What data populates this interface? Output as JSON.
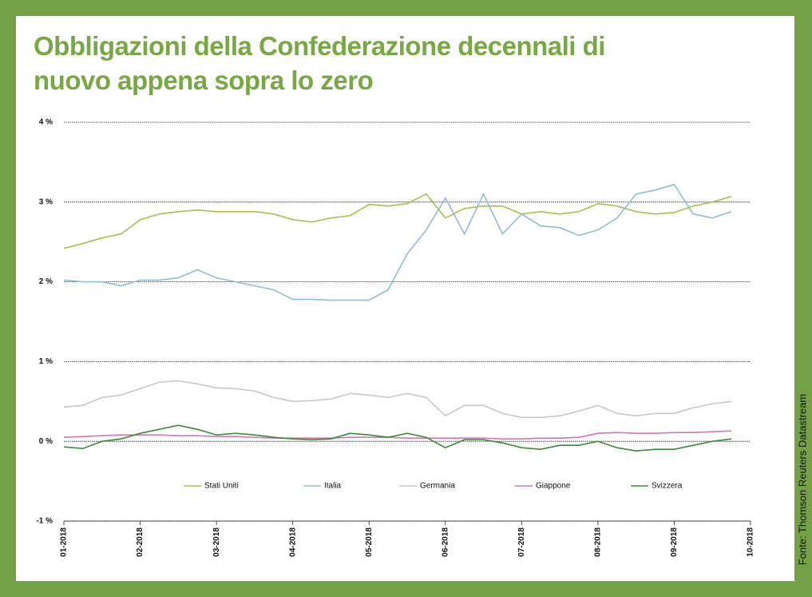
{
  "chart_data": {
    "type": "line",
    "title": "Obbligazioni della Confederazione decennali di nuovo appena sopra lo zero",
    "source": "Fonte: Thomson Reuters Datastream",
    "categories": [
      "01-2018",
      null,
      null,
      null,
      "02-2018",
      null,
      null,
      null,
      "03-2018",
      null,
      null,
      null,
      "04-2018",
      null,
      null,
      null,
      "05-2018",
      null,
      null,
      null,
      "06-2018",
      null,
      null,
      null,
      "07-2018",
      null,
      null,
      null,
      "08-2018",
      null,
      null,
      null,
      "09-2018",
      null,
      null,
      null,
      "10-2018"
    ],
    "ylim": [
      -1,
      4
    ],
    "yticks": [
      {
        "value": -1,
        "label": "-1 %"
      },
      {
        "value": 0,
        "label": "0 %"
      },
      {
        "value": 1,
        "label": "1 %"
      },
      {
        "value": 2,
        "label": "2 %"
      },
      {
        "value": 3,
        "label": "3 %"
      },
      {
        "value": 4,
        "label": "4 %"
      }
    ],
    "grid": true,
    "legend": "bottom",
    "series": [
      {
        "name": "Stati Uniti",
        "color": "#a8c050",
        "values": [
          2.42,
          2.48,
          2.55,
          2.6,
          2.78,
          2.85,
          2.88,
          2.9,
          2.88,
          2.88,
          2.88,
          2.85,
          2.78,
          2.75,
          2.8,
          2.83,
          2.97,
          2.95,
          2.98,
          3.1,
          2.8,
          2.92,
          2.95,
          2.95,
          2.85,
          2.88,
          2.85,
          2.88,
          2.98,
          2.95,
          2.88,
          2.85,
          2.87,
          2.95,
          3.0,
          3.07,
          null
        ]
      },
      {
        "name": "Italia",
        "color": "#8fbcd9",
        "values": [
          2.02,
          2.0,
          2.0,
          1.95,
          2.02,
          2.02,
          2.05,
          2.15,
          2.05,
          2.0,
          1.95,
          1.9,
          1.78,
          1.78,
          1.77,
          1.77,
          1.77,
          1.9,
          2.35,
          2.65,
          3.05,
          2.6,
          3.1,
          2.6,
          2.85,
          2.7,
          2.68,
          2.58,
          2.65,
          2.8,
          3.1,
          3.15,
          3.22,
          2.85,
          2.8,
          2.88,
          null
        ]
      },
      {
        "name": "Germania",
        "color": "#c8c8c8",
        "values": [
          0.43,
          0.45,
          0.55,
          0.58,
          0.66,
          0.74,
          0.76,
          0.72,
          0.67,
          0.66,
          0.63,
          0.55,
          0.5,
          0.51,
          0.53,
          0.6,
          0.58,
          0.55,
          0.6,
          0.55,
          0.32,
          0.45,
          0.45,
          0.35,
          0.3,
          0.3,
          0.32,
          0.38,
          0.45,
          0.35,
          0.32,
          0.35,
          0.35,
          0.42,
          0.47,
          0.5,
          null
        ]
      },
      {
        "name": "Giappone",
        "color": "#d07ab0",
        "values": [
          0.05,
          0.06,
          0.07,
          0.08,
          0.08,
          0.08,
          0.07,
          0.07,
          0.06,
          0.06,
          0.05,
          0.04,
          0.04,
          0.04,
          0.04,
          0.05,
          0.05,
          0.05,
          0.04,
          0.04,
          0.04,
          0.04,
          0.04,
          0.03,
          0.03,
          0.04,
          0.04,
          0.05,
          0.1,
          0.11,
          0.1,
          0.1,
          0.11,
          0.11,
          0.12,
          0.13,
          null
        ]
      },
      {
        "name": "Svizzera",
        "color": "#3f8a3a",
        "values": [
          -0.07,
          -0.09,
          0.0,
          0.03,
          0.1,
          0.15,
          0.2,
          0.15,
          0.08,
          0.1,
          0.08,
          0.05,
          0.03,
          0.02,
          0.03,
          0.1,
          0.08,
          0.05,
          0.1,
          0.05,
          -0.08,
          0.02,
          0.02,
          -0.02,
          -0.08,
          -0.1,
          -0.05,
          -0.05,
          0.0,
          -0.08,
          -0.12,
          -0.1,
          -0.1,
          -0.05,
          0.0,
          0.03,
          null
        ]
      }
    ]
  }
}
